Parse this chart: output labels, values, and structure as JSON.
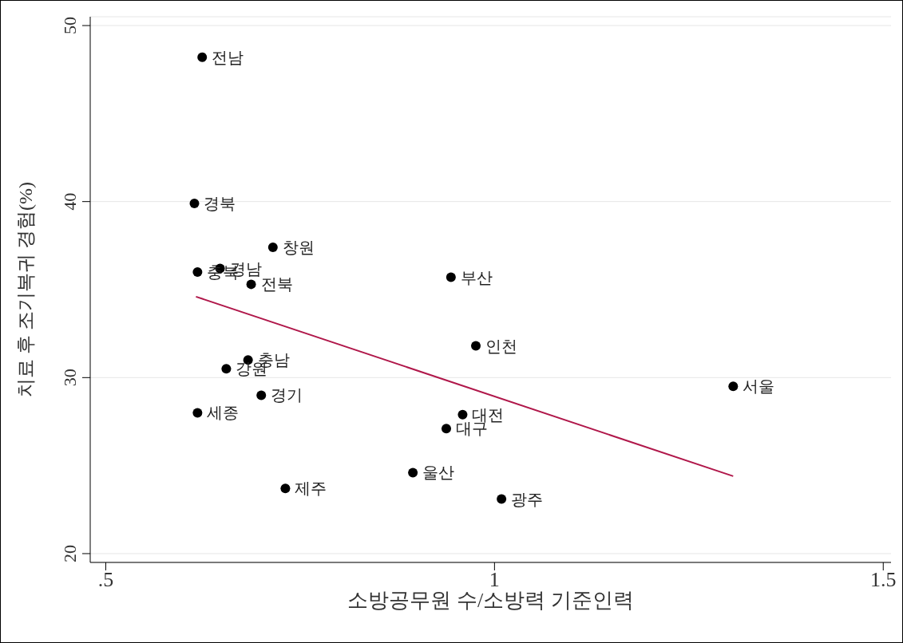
{
  "chart_data": {
    "type": "scatter",
    "xlabel": "소방공무원 수/소방력 기준인력",
    "ylabel": "치료 후 조기복귀 경험(%)",
    "xlim": [
      0.48,
      1.51
    ],
    "xticks": [
      {
        "value": 0.5,
        "label": ".5"
      },
      1,
      1.5
    ],
    "ylim": [
      19.5,
      50.5
    ],
    "yticks": [
      20,
      30,
      40,
      50
    ],
    "grid": "y",
    "series": [
      {
        "color": "#000000",
        "marker": "circle",
        "x": [
          0.624,
          0.614,
          0.715,
          0.618,
          0.647,
          0.687,
          0.944,
          0.976,
          0.683,
          0.655,
          1.307,
          0.7,
          0.618,
          0.959,
          0.938,
          0.895,
          0.731,
          1.009
        ],
        "values": [
          48.2,
          39.9,
          37.4,
          36.0,
          36.2,
          35.3,
          35.7,
          31.8,
          31.0,
          30.5,
          29.5,
          29.0,
          28.0,
          27.9,
          27.1,
          24.6,
          23.7,
          23.1
        ]
      },
      {
        "type": "line",
        "marker": "none",
        "color": "#b0174a",
        "x": [
          0.616,
          1.307
        ],
        "values": [
          34.6,
          24.4
        ]
      }
    ],
    "annotations": [
      {
        "text": "전남",
        "x": 0.624,
        "y": 48.2
      },
      {
        "text": "경북",
        "x": 0.614,
        "y": 39.9
      },
      {
        "text": "창원",
        "x": 0.715,
        "y": 37.4
      },
      {
        "text": "충북",
        "x": 0.618,
        "y": 36.0
      },
      {
        "text": "경남",
        "x": 0.647,
        "y": 36.2
      },
      {
        "text": "전북",
        "x": 0.687,
        "y": 35.3
      },
      {
        "text": "부산",
        "x": 0.944,
        "y": 35.7
      },
      {
        "text": "인천",
        "x": 0.976,
        "y": 31.8
      },
      {
        "text": "충남",
        "x": 0.683,
        "y": 31.0
      },
      {
        "text": "강원",
        "x": 0.655,
        "y": 30.5
      },
      {
        "text": "서울",
        "x": 1.307,
        "y": 29.5
      },
      {
        "text": "경기",
        "x": 0.7,
        "y": 29.0
      },
      {
        "text": "세종",
        "x": 0.618,
        "y": 28.0
      },
      {
        "text": "대전",
        "x": 0.959,
        "y": 27.9
      },
      {
        "text": "대구",
        "x": 0.938,
        "y": 27.1
      },
      {
        "text": "울산",
        "x": 0.895,
        "y": 24.6
      },
      {
        "text": "제주",
        "x": 0.731,
        "y": 23.7
      },
      {
        "text": "광주",
        "x": 1.009,
        "y": 23.1
      }
    ]
  }
}
